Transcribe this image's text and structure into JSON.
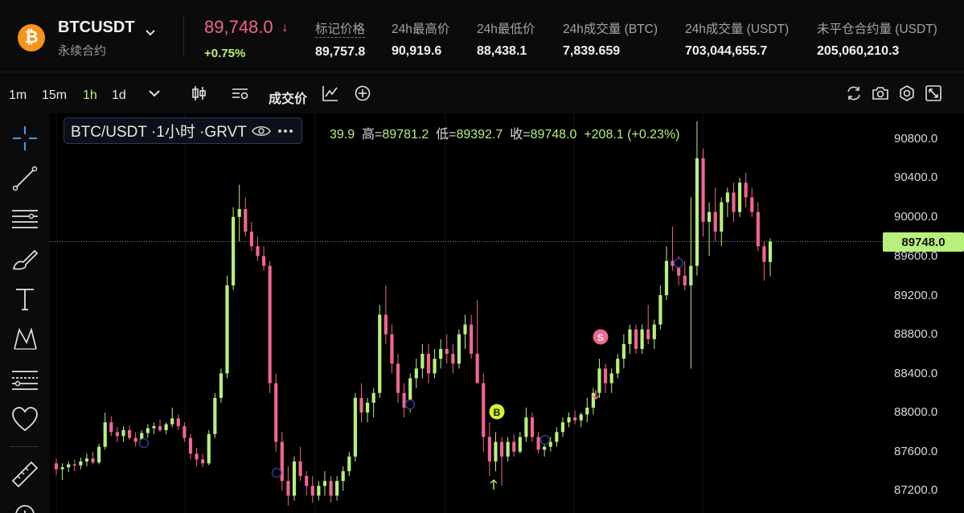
{
  "header": {
    "coin_logo_glyph": "₿",
    "symbol": "BTCUSDT",
    "contract_type": "永续合约",
    "last_price": "89,748.0",
    "change_pct": "+0.75%",
    "stats": [
      {
        "label": "标记价格",
        "value": "89,757.8"
      },
      {
        "label": "24h最高价",
        "value": "90,919.6"
      },
      {
        "label": "24h最低价",
        "value": "88,438.1"
      },
      {
        "label": "24h成交量 (BTC)",
        "value": "7,839.659"
      },
      {
        "label": "24h成交量 (USDT)",
        "value": "703,044,655.7"
      },
      {
        "label": "未平仓合约量 (USDT)",
        "value": "205,060,210.3"
      }
    ]
  },
  "toolbar": {
    "timeframes": [
      "1m",
      "15m",
      "1h",
      "1d"
    ],
    "active_timeframe": "1h",
    "trade_price_label": "成交价"
  },
  "chart": {
    "legend_title": "BTC/USDT ·1小时 ·GRVT",
    "ohlc_open_partial": "39.9",
    "ohlc_high_label": "高=",
    "ohlc_high": "89781.2",
    "ohlc_low_label": "低=",
    "ohlc_low": "89392.7",
    "ohlc_close_label": "收=",
    "ohlc_close": "89748.0",
    "ohlc_change": "+208.1 (+0.23%)",
    "current_price_tag": "89748.0",
    "y_ticks": [
      "90800.0",
      "90400.0",
      "90000.0",
      "89600.0",
      "89200.0",
      "88800.0",
      "88400.0",
      "88000.0",
      "87600.0",
      "87200.0"
    ],
    "marker_sell": "S",
    "marker_buy": "B"
  },
  "colors": {
    "up": "#b8f07c",
    "down": "#f0668c",
    "accent_blue": "#3aa0ff",
    "background": "#000000"
  },
  "chart_data": {
    "type": "candlestick",
    "ylim": [
      87080,
      90980
    ],
    "current_price": 89748.0,
    "candles": [
      {
        "o": 87480,
        "h": 87530,
        "l": 87360,
        "c": 87420
      },
      {
        "o": 87420,
        "h": 87480,
        "l": 87310,
        "c": 87440
      },
      {
        "o": 87440,
        "h": 87500,
        "l": 87390,
        "c": 87470
      },
      {
        "o": 87470,
        "h": 87520,
        "l": 87400,
        "c": 87460
      },
      {
        "o": 87460,
        "h": 87540,
        "l": 87420,
        "c": 87500
      },
      {
        "o": 87500,
        "h": 87580,
        "l": 87450,
        "c": 87530
      },
      {
        "o": 87530,
        "h": 87600,
        "l": 87470,
        "c": 87490
      },
      {
        "o": 87490,
        "h": 87680,
        "l": 87470,
        "c": 87650
      },
      {
        "o": 87650,
        "h": 88000,
        "l": 87620,
        "c": 87900
      },
      {
        "o": 87900,
        "h": 87960,
        "l": 87760,
        "c": 87800
      },
      {
        "o": 87800,
        "h": 87850,
        "l": 87700,
        "c": 87760
      },
      {
        "o": 87760,
        "h": 87860,
        "l": 87700,
        "c": 87820
      },
      {
        "o": 87820,
        "h": 87870,
        "l": 87720,
        "c": 87740
      },
      {
        "o": 87740,
        "h": 87800,
        "l": 87650,
        "c": 87700
      },
      {
        "o": 87700,
        "h": 87820,
        "l": 87680,
        "c": 87790
      },
      {
        "o": 87790,
        "h": 87880,
        "l": 87740,
        "c": 87840
      },
      {
        "o": 87840,
        "h": 87900,
        "l": 87780,
        "c": 87860
      },
      {
        "o": 87860,
        "h": 87930,
        "l": 87800,
        "c": 87820
      },
      {
        "o": 87820,
        "h": 87900,
        "l": 87780,
        "c": 87880
      },
      {
        "o": 87880,
        "h": 88050,
        "l": 87850,
        "c": 87940
      },
      {
        "o": 87940,
        "h": 87980,
        "l": 87820,
        "c": 87860
      },
      {
        "o": 87860,
        "h": 87900,
        "l": 87700,
        "c": 87740
      },
      {
        "o": 87740,
        "h": 87780,
        "l": 87520,
        "c": 87580
      },
      {
        "o": 87580,
        "h": 87640,
        "l": 87450,
        "c": 87520
      },
      {
        "o": 87520,
        "h": 87580,
        "l": 87440,
        "c": 87480
      },
      {
        "o": 87480,
        "h": 87820,
        "l": 87460,
        "c": 87780
      },
      {
        "o": 87780,
        "h": 88200,
        "l": 87740,
        "c": 88150
      },
      {
        "o": 88150,
        "h": 88450,
        "l": 88100,
        "c": 88400
      },
      {
        "o": 88400,
        "h": 89400,
        "l": 88350,
        "c": 89300
      },
      {
        "o": 89300,
        "h": 90100,
        "l": 89250,
        "c": 90000
      },
      {
        "o": 90000,
        "h": 90330,
        "l": 89750,
        "c": 90080
      },
      {
        "o": 90080,
        "h": 90200,
        "l": 89800,
        "c": 89850
      },
      {
        "o": 89850,
        "h": 89950,
        "l": 89650,
        "c": 89700
      },
      {
        "o": 89700,
        "h": 89800,
        "l": 89550,
        "c": 89600
      },
      {
        "o": 89600,
        "h": 89700,
        "l": 89450,
        "c": 89500
      },
      {
        "o": 89500,
        "h": 89550,
        "l": 88200,
        "c": 88300
      },
      {
        "o": 88300,
        "h": 88400,
        "l": 87600,
        "c": 87700
      },
      {
        "o": 87700,
        "h": 87800,
        "l": 87200,
        "c": 87300
      },
      {
        "o": 87300,
        "h": 87450,
        "l": 87050,
        "c": 87150
      },
      {
        "o": 87150,
        "h": 87550,
        "l": 87100,
        "c": 87500
      },
      {
        "o": 87500,
        "h": 87650,
        "l": 87300,
        "c": 87350
      },
      {
        "o": 87350,
        "h": 87400,
        "l": 87150,
        "c": 87250
      },
      {
        "o": 87250,
        "h": 87350,
        "l": 87080,
        "c": 87150
      },
      {
        "o": 87150,
        "h": 87300,
        "l": 87100,
        "c": 87250
      },
      {
        "o": 87250,
        "h": 87400,
        "l": 87150,
        "c": 87300
      },
      {
        "o": 87300,
        "h": 87350,
        "l": 87080,
        "c": 87150
      },
      {
        "o": 87150,
        "h": 87350,
        "l": 87100,
        "c": 87300
      },
      {
        "o": 87300,
        "h": 87450,
        "l": 87200,
        "c": 87400
      },
      {
        "o": 87400,
        "h": 87600,
        "l": 87350,
        "c": 87550
      },
      {
        "o": 87550,
        "h": 88200,
        "l": 87500,
        "c": 88150
      },
      {
        "o": 88150,
        "h": 88300,
        "l": 87900,
        "c": 88000
      },
      {
        "o": 88000,
        "h": 88150,
        "l": 87900,
        "c": 88100
      },
      {
        "o": 88100,
        "h": 88250,
        "l": 87950,
        "c": 88200
      },
      {
        "o": 88200,
        "h": 89100,
        "l": 88150,
        "c": 89000
      },
      {
        "o": 89000,
        "h": 89300,
        "l": 88700,
        "c": 88800
      },
      {
        "o": 88800,
        "h": 88900,
        "l": 88400,
        "c": 88500
      },
      {
        "o": 88500,
        "h": 88600,
        "l": 88100,
        "c": 88200
      },
      {
        "o": 88200,
        "h": 88300,
        "l": 87950,
        "c": 88050
      },
      {
        "o": 88050,
        "h": 88400,
        "l": 88000,
        "c": 88350
      },
      {
        "o": 88350,
        "h": 88550,
        "l": 88250,
        "c": 88450
      },
      {
        "o": 88450,
        "h": 88700,
        "l": 88350,
        "c": 88600
      },
      {
        "o": 88600,
        "h": 88700,
        "l": 88300,
        "c": 88400
      },
      {
        "o": 88400,
        "h": 88650,
        "l": 88350,
        "c": 88550
      },
      {
        "o": 88550,
        "h": 88750,
        "l": 88450,
        "c": 88650
      },
      {
        "o": 88650,
        "h": 88800,
        "l": 88500,
        "c": 88600
      },
      {
        "o": 88600,
        "h": 88700,
        "l": 88400,
        "c": 88500
      },
      {
        "o": 88500,
        "h": 88850,
        "l": 88450,
        "c": 88800
      },
      {
        "o": 88800,
        "h": 89000,
        "l": 88650,
        "c": 88900
      },
      {
        "o": 88900,
        "h": 89000,
        "l": 88550,
        "c": 88600
      },
      {
        "o": 88600,
        "h": 89150,
        "l": 88300,
        "c": 88300
      },
      {
        "o": 88300,
        "h": 88400,
        "l": 87600,
        "c": 87750
      },
      {
        "o": 87750,
        "h": 87900,
        "l": 87350,
        "c": 87500
      },
      {
        "o": 87500,
        "h": 87800,
        "l": 87400,
        "c": 87700
      },
      {
        "o": 87700,
        "h": 87750,
        "l": 87250,
        "c": 87550
      },
      {
        "o": 87550,
        "h": 87750,
        "l": 87500,
        "c": 87700
      },
      {
        "o": 87700,
        "h": 87780,
        "l": 87550,
        "c": 87600
      },
      {
        "o": 87600,
        "h": 87800,
        "l": 87580,
        "c": 87750
      },
      {
        "o": 87750,
        "h": 88050,
        "l": 87700,
        "c": 87950
      },
      {
        "o": 87950,
        "h": 88000,
        "l": 87700,
        "c": 87750
      },
      {
        "o": 87750,
        "h": 87800,
        "l": 87580,
        "c": 87620
      },
      {
        "o": 87620,
        "h": 87700,
        "l": 87550,
        "c": 87650
      },
      {
        "o": 87650,
        "h": 87750,
        "l": 87600,
        "c": 87700
      },
      {
        "o": 87700,
        "h": 87850,
        "l": 87650,
        "c": 87800
      },
      {
        "o": 87800,
        "h": 87950,
        "l": 87750,
        "c": 87900
      },
      {
        "o": 87900,
        "h": 88000,
        "l": 87850,
        "c": 87950
      },
      {
        "o": 87950,
        "h": 88020,
        "l": 87880,
        "c": 87920
      },
      {
        "o": 87920,
        "h": 88000,
        "l": 87850,
        "c": 87980
      },
      {
        "o": 87980,
        "h": 88150,
        "l": 87900,
        "c": 88050
      },
      {
        "o": 88050,
        "h": 88250,
        "l": 87980,
        "c": 88200
      },
      {
        "o": 88200,
        "h": 88550,
        "l": 88150,
        "c": 88450
      },
      {
        "o": 88450,
        "h": 88500,
        "l": 88200,
        "c": 88300
      },
      {
        "o": 88300,
        "h": 88450,
        "l": 88200,
        "c": 88400
      },
      {
        "o": 88400,
        "h": 88600,
        "l": 88350,
        "c": 88550
      },
      {
        "o": 88550,
        "h": 88800,
        "l": 88450,
        "c": 88700
      },
      {
        "o": 88700,
        "h": 88900,
        "l": 88600,
        "c": 88850
      },
      {
        "o": 88850,
        "h": 88900,
        "l": 88600,
        "c": 88650
      },
      {
        "o": 88650,
        "h": 88900,
        "l": 88600,
        "c": 88850
      },
      {
        "o": 88850,
        "h": 89100,
        "l": 88700,
        "c": 88750
      },
      {
        "o": 88750,
        "h": 88950,
        "l": 88650,
        "c": 88900
      },
      {
        "o": 88900,
        "h": 89300,
        "l": 88850,
        "c": 89200
      },
      {
        "o": 89200,
        "h": 89700,
        "l": 89150,
        "c": 89550
      },
      {
        "o": 89550,
        "h": 89900,
        "l": 89450,
        "c": 89500
      },
      {
        "o": 89500,
        "h": 89600,
        "l": 89300,
        "c": 89400
      },
      {
        "o": 89400,
        "h": 89550,
        "l": 89250,
        "c": 89300
      },
      {
        "o": 89300,
        "h": 90200,
        "l": 88450,
        "c": 89500
      },
      {
        "o": 89500,
        "h": 90980,
        "l": 89400,
        "c": 90600
      },
      {
        "o": 90600,
        "h": 90700,
        "l": 89800,
        "c": 89950
      },
      {
        "o": 89950,
        "h": 90150,
        "l": 89600,
        "c": 90050
      },
      {
        "o": 90050,
        "h": 90300,
        "l": 89750,
        "c": 89850
      },
      {
        "o": 89850,
        "h": 90200,
        "l": 89700,
        "c": 90150
      },
      {
        "o": 90150,
        "h": 90300,
        "l": 90000,
        "c": 90250
      },
      {
        "o": 90250,
        "h": 90350,
        "l": 89950,
        "c": 90050
      },
      {
        "o": 90050,
        "h": 90400,
        "l": 90000,
        "c": 90350
      },
      {
        "o": 90350,
        "h": 90450,
        "l": 90100,
        "c": 90200
      },
      {
        "o": 90200,
        "h": 90300,
        "l": 90000,
        "c": 90050
      },
      {
        "o": 90050,
        "h": 90150,
        "l": 89650,
        "c": 89700
      },
      {
        "o": 89700,
        "h": 89750,
        "l": 89350,
        "c": 89540
      },
      {
        "o": 89540,
        "h": 89781,
        "l": 89393,
        "c": 89748
      }
    ]
  }
}
